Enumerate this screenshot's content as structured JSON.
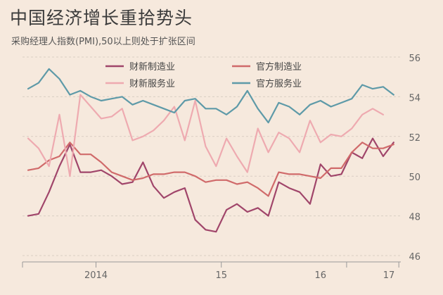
{
  "title": "中国经济增长重拾势头",
  "subtitle": "采购经理人指数(PMI),50以上则处于扩张区间",
  "colors": {
    "background": "#f6e9dd",
    "grid": "#d9cec3",
    "axis": "#999999",
    "caixin_mfg": "#a0456a",
    "official_mfg": "#d06a6a",
    "caixin_svc": "#eeaab0",
    "official_svc": "#5e9aa8"
  },
  "chart_data": {
    "type": "line",
    "title": "中国经济增长重拾势头",
    "subtitle": "采购经理人指数(PMI),50以上则处于扩张区间",
    "xlabel": "",
    "ylabel": "",
    "ylim": [
      46,
      56
    ],
    "y_ticks": [
      46,
      48,
      50,
      52,
      54,
      56
    ],
    "x_tick_labels": [
      "2014",
      "15",
      "16",
      "17"
    ],
    "x_start": "2013-06",
    "legend_position": "top-center",
    "grid": true,
    "series": [
      {
        "name": "财新制造业",
        "color_key": "caixin_mfg",
        "values": [
          48.0,
          48.1,
          49.2,
          50.5,
          51.6,
          50.2,
          50.2,
          50.3,
          50.0,
          49.6,
          49.7,
          50.7,
          49.5,
          48.9,
          49.2,
          49.4,
          47.8,
          47.3,
          47.2,
          48.3,
          48.6,
          48.2,
          48.4,
          48.0,
          49.7,
          49.4,
          49.2,
          48.6,
          50.6,
          50.0,
          50.1,
          51.2,
          50.9,
          51.9,
          51.0,
          51.7
        ]
      },
      {
        "name": "官方制造业",
        "color_key": "official_mfg",
        "values": [
          50.3,
          50.4,
          50.8,
          51.0,
          51.7,
          51.1,
          51.1,
          50.7,
          50.2,
          50.0,
          49.8,
          49.9,
          50.1,
          50.1,
          50.2,
          50.2,
          50.0,
          49.7,
          49.8,
          49.8,
          49.6,
          49.7,
          49.4,
          49.0,
          50.2,
          50.1,
          50.1,
          50.0,
          49.9,
          50.4,
          50.4,
          51.2,
          51.7,
          51.4,
          51.4,
          51.6
        ]
      },
      {
        "name": "财新服务业",
        "color_key": "caixin_svc",
        "values": [
          51.9,
          51.4,
          50.5,
          53.1,
          50.0,
          54.1,
          53.5,
          52.9,
          53.0,
          53.4,
          51.8,
          52.0,
          52.3,
          52.8,
          53.5,
          51.8,
          53.8,
          51.5,
          50.5,
          51.9,
          51.0,
          50.2,
          52.4,
          51.2,
          52.2,
          51.9,
          51.2,
          52.8,
          51.7,
          52.1,
          52.0,
          52.4,
          53.1,
          53.4,
          53.1
        ]
      },
      {
        "name": "官方服务业",
        "color_key": "official_svc",
        "values": [
          54.4,
          54.7,
          55.4,
          54.9,
          54.1,
          54.3,
          54.0,
          53.8,
          53.9,
          54.0,
          53.6,
          53.8,
          53.6,
          53.4,
          53.2,
          53.8,
          53.9,
          53.4,
          53.4,
          53.1,
          53.5,
          54.3,
          53.4,
          52.7,
          53.7,
          53.5,
          53.1,
          53.6,
          53.8,
          53.5,
          53.7,
          53.9,
          54.6,
          54.4,
          54.5,
          54.1
        ]
      }
    ]
  }
}
